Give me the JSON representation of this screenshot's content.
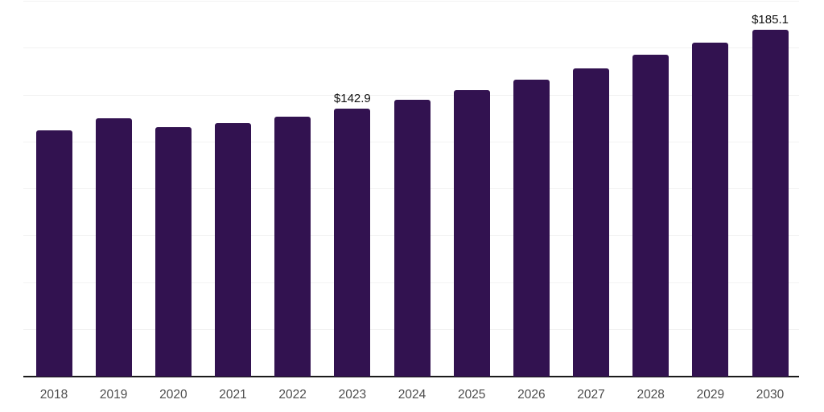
{
  "chart_data": {
    "type": "bar",
    "title": "",
    "xlabel": "",
    "ylabel": "",
    "categories": [
      "2018",
      "2019",
      "2020",
      "2021",
      "2022",
      "2023",
      "2024",
      "2025",
      "2026",
      "2027",
      "2028",
      "2029",
      "2030"
    ],
    "values": [
      131.4,
      137.9,
      133.2,
      135.1,
      138.6,
      142.9,
      147.6,
      152.9,
      158.4,
      164.4,
      171.5,
      178.0,
      185.1
    ],
    "data_labels": [
      {
        "category": "2023",
        "text": "$142.9"
      },
      {
        "category": "2030",
        "text": "$185.1"
      }
    ],
    "ylim": [
      0,
      200
    ],
    "grid_interval": 25,
    "grid": true,
    "legend": false,
    "y_axis_labels_visible": false,
    "colors": {
      "bar": "#321250",
      "axis_line": "#1a1a1a",
      "gridline": "#f2f2f2",
      "tick_label": "#4d4d4d",
      "data_label": "#111111",
      "background": "#ffffff"
    }
  }
}
